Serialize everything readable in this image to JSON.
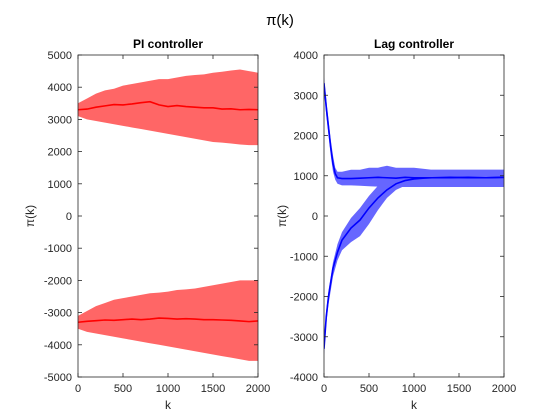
{
  "figure": {
    "suptitle": "π(k)"
  },
  "chart_data": [
    {
      "type": "area",
      "title": "PI controller",
      "xlabel": "k",
      "ylabel": "π(k)",
      "xlim": [
        0,
        2000
      ],
      "ylim": [
        -5000,
        5000
      ],
      "xticks": [
        "0",
        "500",
        "1000",
        "1500",
        "2000"
      ],
      "yticks": [
        "-5000",
        "-4000",
        "-3000",
        "-2000",
        "-1000",
        "0",
        "1000",
        "2000",
        "3000",
        "4000",
        "5000"
      ],
      "color": "#ff0000",
      "band_color": "#ff6666",
      "series": [
        {
          "x": [
            0,
            100,
            200,
            300,
            400,
            500,
            600,
            700,
            800,
            900,
            1000,
            1100,
            1200,
            1300,
            1400,
            1500,
            1600,
            1700,
            1800,
            1900,
            2000
          ],
          "mean": [
            3300,
            3320,
            3380,
            3420,
            3460,
            3450,
            3480,
            3520,
            3550,
            3450,
            3400,
            3430,
            3400,
            3380,
            3360,
            3360,
            3320,
            3330,
            3300,
            3310,
            3300
          ],
          "upper": [
            3500,
            3650,
            3800,
            3900,
            3950,
            4050,
            4100,
            4150,
            4200,
            4250,
            4250,
            4300,
            4350,
            4380,
            4400,
            4450,
            4480,
            4520,
            4550,
            4500,
            4450
          ],
          "lower": [
            3100,
            3000,
            2950,
            2900,
            2850,
            2800,
            2750,
            2700,
            2650,
            2600,
            2550,
            2500,
            2450,
            2400,
            2350,
            2300,
            2280,
            2250,
            2220,
            2200,
            2200
          ]
        },
        {
          "x": [
            0,
            100,
            200,
            300,
            400,
            500,
            600,
            700,
            800,
            900,
            1000,
            1100,
            1200,
            1300,
            1400,
            1500,
            1600,
            1700,
            1800,
            1900,
            2000
          ],
          "mean": [
            -3300,
            -3270,
            -3250,
            -3230,
            -3240,
            -3220,
            -3200,
            -3220,
            -3200,
            -3170,
            -3180,
            -3200,
            -3190,
            -3200,
            -3220,
            -3220,
            -3230,
            -3240,
            -3260,
            -3280,
            -3260
          ],
          "upper": [
            -3100,
            -2950,
            -2800,
            -2700,
            -2600,
            -2550,
            -2500,
            -2450,
            -2400,
            -2380,
            -2350,
            -2300,
            -2280,
            -2250,
            -2200,
            -2150,
            -2100,
            -2050,
            -2000,
            -2000,
            -2000
          ],
          "lower": [
            -3500,
            -3600,
            -3650,
            -3700,
            -3750,
            -3800,
            -3850,
            -3900,
            -3950,
            -4000,
            -4050,
            -4100,
            -4150,
            -4200,
            -4250,
            -4300,
            -4350,
            -4400,
            -4450,
            -4500,
            -4500
          ]
        }
      ]
    },
    {
      "type": "area",
      "title": "Lag controller",
      "xlabel": "k",
      "ylabel": "π(k)",
      "xlim": [
        0,
        2000
      ],
      "ylim": [
        -4000,
        4000
      ],
      "xticks": [
        "0",
        "500",
        "1000",
        "1500",
        "2000"
      ],
      "yticks": [
        "-4000",
        "-3000",
        "-2000",
        "-1000",
        "0",
        "1000",
        "2000",
        "3000",
        "4000"
      ],
      "color": "#0000ff",
      "band_color": "#6666ff",
      "series": [
        {
          "x": [
            0,
            25,
            50,
            75,
            100,
            125,
            150,
            200,
            300,
            400,
            500,
            600,
            700,
            800,
            900,
            1000,
            1200,
            1400,
            1600,
            1800,
            2000
          ],
          "mean": [
            3300,
            2700,
            2200,
            1700,
            1300,
            1050,
            950,
            930,
            930,
            940,
            950,
            960,
            950,
            940,
            960,
            950,
            950,
            960,
            950,
            950,
            960
          ],
          "upper": [
            3450,
            2900,
            2400,
            1900,
            1500,
            1200,
            1100,
            1100,
            1150,
            1150,
            1200,
            1200,
            1250,
            1200,
            1200,
            1200,
            1150,
            1150,
            1150,
            1150,
            1150
          ],
          "lower": [
            3150,
            2500,
            2000,
            1500,
            1100,
            900,
            800,
            760,
            760,
            750,
            740,
            730,
            730,
            720,
            720,
            720,
            720,
            720,
            720,
            720,
            720
          ]
        },
        {
          "x": [
            0,
            25,
            50,
            100,
            150,
            200,
            300,
            400,
            500,
            600,
            700,
            800,
            900,
            1000,
            1100,
            1200,
            1400,
            1600,
            1800,
            2000
          ],
          "mean": [
            -3300,
            -2500,
            -2000,
            -1300,
            -900,
            -600,
            -300,
            -100,
            200,
            450,
            650,
            800,
            880,
            920,
            940,
            950,
            950,
            960,
            950,
            960
          ],
          "upper": [
            -3150,
            -2350,
            -1850,
            -1150,
            -700,
            -400,
            -50,
            200,
            500,
            750,
            900,
            1000,
            1050,
            1100,
            1100,
            1150,
            1150,
            1150,
            1150,
            1150
          ],
          "lower": [
            -3450,
            -2700,
            -2200,
            -1500,
            -1100,
            -850,
            -650,
            -500,
            -200,
            150,
            450,
            650,
            750,
            770,
            780,
            780,
            780,
            780,
            780,
            780
          ]
        }
      ]
    }
  ]
}
